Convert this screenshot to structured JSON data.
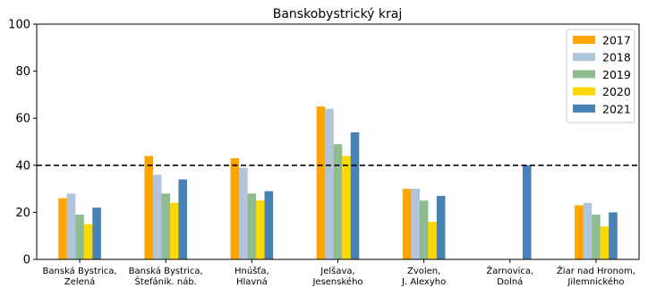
{
  "chart_data": {
    "type": "bar",
    "title": "Banskobystrický kraj",
    "xlabel": "",
    "ylabel": "",
    "ylim": [
      0,
      100
    ],
    "yticks": [
      0,
      20,
      40,
      60,
      80,
      100
    ],
    "categories": [
      [
        "Banská Bystrica,",
        "Zelená"
      ],
      [
        "Banská Bystrica,",
        "Štefánik. náb."
      ],
      [
        "Hnúšťa,",
        "Hlavná"
      ],
      [
        "Jelšava,",
        "Jesenského"
      ],
      [
        "Zvolen,",
        "J. Alexyho"
      ],
      [
        "Žarnovica,",
        "Dolná"
      ],
      [
        "Žiar nad Hronom,",
        "Jilemnického"
      ]
    ],
    "series": [
      {
        "name": "2017",
        "color": "#ffa500",
        "values": [
          26,
          44,
          43,
          65,
          30,
          null,
          23
        ]
      },
      {
        "name": "2018",
        "color": "#b0c4de",
        "values": [
          28,
          36,
          39,
          64,
          30,
          null,
          24
        ]
      },
      {
        "name": "2019",
        "color": "#8fbc8f",
        "values": [
          19,
          28,
          28,
          49,
          25,
          null,
          19
        ]
      },
      {
        "name": "2020",
        "color": "#ffd700",
        "values": [
          15,
          24,
          25,
          44,
          16,
          null,
          14
        ]
      },
      {
        "name": "2021",
        "color": "#4682b4",
        "values": [
          22,
          34,
          29,
          54,
          27,
          40,
          20
        ]
      }
    ],
    "reference_line": {
      "y": 40,
      "style": "dashed",
      "color": "#000000"
    },
    "grid": false,
    "legend_position": "top-right"
  }
}
